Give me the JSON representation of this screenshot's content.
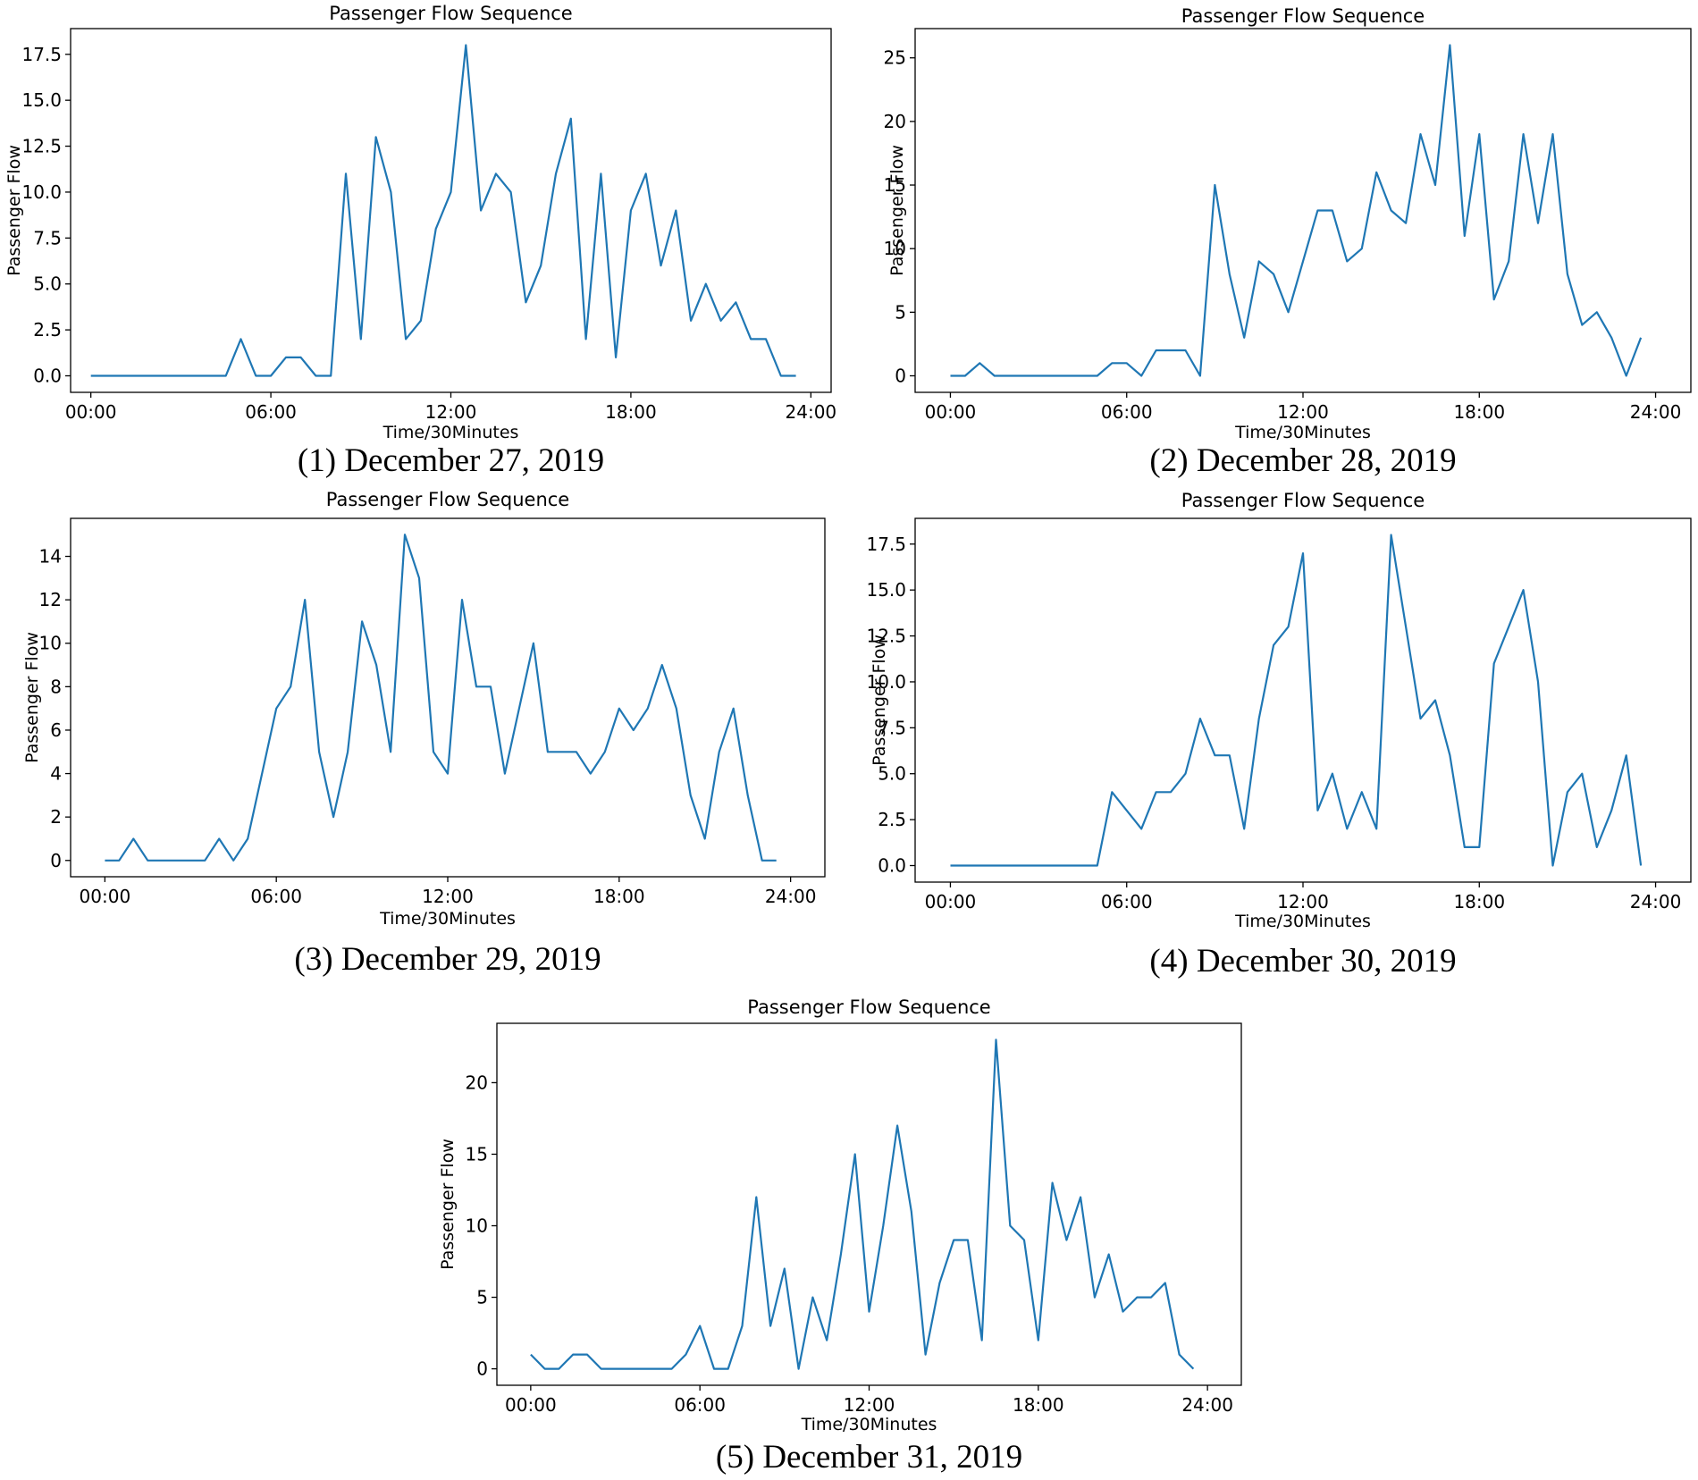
{
  "style": {
    "line_color": "#1f77b4"
  },
  "chart_data": [
    {
      "type": "line",
      "caption": "(1) December 27, 2019",
      "title": "Passenger Flow Sequence",
      "xlabel": "Time/30Minutes",
      "ylabel": "Passenger Flow",
      "xlim": [
        -1.35,
        49.35
      ],
      "ylim": [
        -0.9,
        18.9
      ],
      "xticks": [
        {
          "v": 0,
          "label": "00:00"
        },
        {
          "v": 12,
          "label": "06:00"
        },
        {
          "v": 24,
          "label": "12:00"
        },
        {
          "v": 36,
          "label": "18:00"
        },
        {
          "v": 48,
          "label": "24:00"
        }
      ],
      "yticks": [
        {
          "v": 0,
          "label": "0.0"
        },
        {
          "v": 2.5,
          "label": "2.5"
        },
        {
          "v": 5,
          "label": "5.0"
        },
        {
          "v": 7.5,
          "label": "7.5"
        },
        {
          "v": 10,
          "label": "10.0"
        },
        {
          "v": 12.5,
          "label": "12.5"
        },
        {
          "v": 15,
          "label": "15.0"
        },
        {
          "v": 17.5,
          "label": "17.5"
        }
      ],
      "values": [
        0,
        0,
        0,
        0,
        0,
        0,
        0,
        0,
        0,
        0,
        2,
        0,
        0,
        1,
        1,
        0,
        0,
        11,
        2,
        13,
        10,
        2,
        3,
        8,
        10,
        18,
        9,
        11,
        10,
        4,
        6,
        11,
        14,
        2,
        11,
        1,
        9,
        11,
        6,
        9,
        3,
        5,
        3,
        4,
        2,
        2,
        0,
        0
      ]
    },
    {
      "type": "line",
      "caption": "(2) December 28, 2019",
      "title": "Passenger Flow Sequence",
      "xlabel": "Time/30Minutes",
      "ylabel": "Passenger Flow",
      "xlim": [
        -2.4,
        50.4
      ],
      "ylim": [
        -1.3,
        27.3
      ],
      "xticks": [
        {
          "v": 0,
          "label": "00:00"
        },
        {
          "v": 12,
          "label": "06:00"
        },
        {
          "v": 24,
          "label": "12:00"
        },
        {
          "v": 36,
          "label": "18:00"
        },
        {
          "v": 48,
          "label": "24:00"
        }
      ],
      "yticks": [
        {
          "v": 0,
          "label": "0"
        },
        {
          "v": 5,
          "label": "5"
        },
        {
          "v": 10,
          "label": "10"
        },
        {
          "v": 15,
          "label": "15"
        },
        {
          "v": 20,
          "label": "20"
        },
        {
          "v": 25,
          "label": "25"
        }
      ],
      "values": [
        0,
        0,
        1,
        0,
        0,
        0,
        0,
        0,
        0,
        0,
        0,
        1,
        1,
        0,
        2,
        2,
        2,
        0,
        15,
        8,
        3,
        9,
        8,
        5,
        9,
        13,
        13,
        9,
        10,
        16,
        13,
        12,
        19,
        15,
        26,
        11,
        19,
        6,
        9,
        19,
        12,
        19,
        8,
        4,
        5,
        3,
        0,
        3
      ]
    },
    {
      "type": "line",
      "caption": "(3) December 29, 2019",
      "title": "Passenger Flow Sequence",
      "xlabel": "Time/30Minutes",
      "ylabel": "Passenger Flow",
      "xlim": [
        -2.4,
        50.4
      ],
      "ylim": [
        -0.75,
        15.75
      ],
      "xticks": [
        {
          "v": 0,
          "label": "00:00"
        },
        {
          "v": 12,
          "label": "06:00"
        },
        {
          "v": 24,
          "label": "12:00"
        },
        {
          "v": 36,
          "label": "18:00"
        },
        {
          "v": 48,
          "label": "24:00"
        }
      ],
      "yticks": [
        {
          "v": 0,
          "label": "0"
        },
        {
          "v": 2,
          "label": "2"
        },
        {
          "v": 4,
          "label": "4"
        },
        {
          "v": 6,
          "label": "6"
        },
        {
          "v": 8,
          "label": "8"
        },
        {
          "v": 10,
          "label": "10"
        },
        {
          "v": 12,
          "label": "12"
        },
        {
          "v": 14,
          "label": "14"
        }
      ],
      "values": [
        0,
        0,
        1,
        0,
        0,
        0,
        0,
        0,
        1,
        0,
        1,
        4,
        7,
        8,
        12,
        5,
        2,
        5,
        11,
        9,
        5,
        15,
        13,
        5,
        4,
        12,
        8,
        8,
        4,
        7,
        10,
        5,
        5,
        5,
        4,
        5,
        7,
        6,
        7,
        9,
        7,
        3,
        1,
        5,
        7,
        3,
        0,
        0
      ]
    },
    {
      "type": "line",
      "caption": "(4) December 30, 2019",
      "title": "Passenger Flow Sequence",
      "xlabel": "Time/30Minutes",
      "ylabel": "Passenger Flow",
      "xlim": [
        -2.4,
        50.4
      ],
      "ylim": [
        -0.9,
        18.9
      ],
      "xticks": [
        {
          "v": 0,
          "label": "00:00"
        },
        {
          "v": 12,
          "label": "06:00"
        },
        {
          "v": 24,
          "label": "12:00"
        },
        {
          "v": 36,
          "label": "18:00"
        },
        {
          "v": 48,
          "label": "24:00"
        }
      ],
      "yticks": [
        {
          "v": 0,
          "label": "0.0"
        },
        {
          "v": 2.5,
          "label": "2.5"
        },
        {
          "v": 5,
          "label": "5.0"
        },
        {
          "v": 7.5,
          "label": "7.5"
        },
        {
          "v": 10,
          "label": "10.0"
        },
        {
          "v": 12.5,
          "label": "12.5"
        },
        {
          "v": 15,
          "label": "15.0"
        },
        {
          "v": 17.5,
          "label": "17.5"
        }
      ],
      "values": [
        0,
        0,
        0,
        0,
        0,
        0,
        0,
        0,
        0,
        0,
        0,
        4,
        3,
        2,
        4,
        4,
        5,
        8,
        6,
        6,
        2,
        8,
        12,
        13,
        17,
        3,
        5,
        2,
        4,
        2,
        18,
        13,
        8,
        9,
        6,
        1,
        1,
        11,
        13,
        15,
        10,
        0,
        4,
        5,
        1,
        3,
        6,
        0
      ]
    },
    {
      "type": "line",
      "caption": "(5) December 31, 2019",
      "title": "Passenger Flow Sequence",
      "xlabel": "Time/30Minutes",
      "ylabel": "Passenger Flow",
      "xlim": [
        -2.4,
        50.4
      ],
      "ylim": [
        -1.15,
        24.15
      ],
      "xticks": [
        {
          "v": 0,
          "label": "00:00"
        },
        {
          "v": 12,
          "label": "06:00"
        },
        {
          "v": 24,
          "label": "12:00"
        },
        {
          "v": 36,
          "label": "18:00"
        },
        {
          "v": 48,
          "label": "24:00"
        }
      ],
      "yticks": [
        {
          "v": 0,
          "label": "0"
        },
        {
          "v": 5,
          "label": "5"
        },
        {
          "v": 10,
          "label": "10"
        },
        {
          "v": 15,
          "label": "15"
        },
        {
          "v": 20,
          "label": "20"
        }
      ],
      "values": [
        1,
        0,
        0,
        1,
        1,
        0,
        0,
        0,
        0,
        0,
        0,
        1,
        3,
        0,
        0,
        3,
        12,
        3,
        7,
        0,
        5,
        2,
        8,
        15,
        4,
        10,
        17,
        11,
        1,
        6,
        9,
        9,
        2,
        23,
        10,
        9,
        2,
        13,
        9,
        12,
        5,
        8,
        4,
        5,
        5,
        6,
        1,
        0
      ]
    }
  ]
}
